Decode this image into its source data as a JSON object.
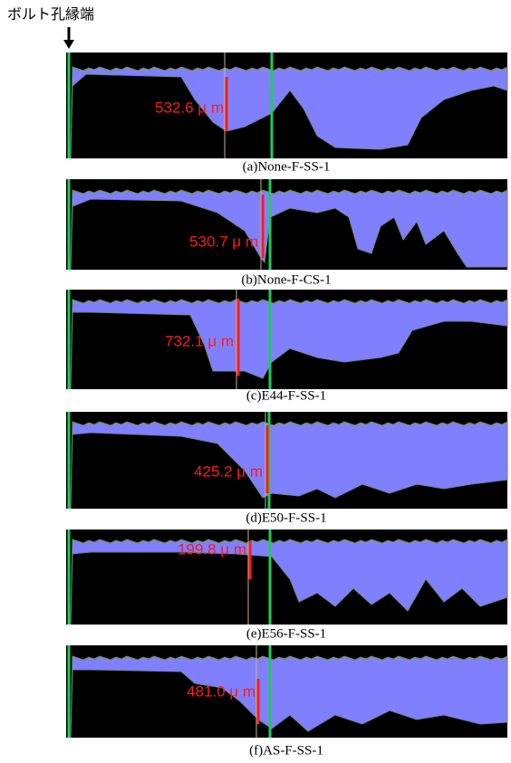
{
  "header": {
    "label": "ボルト孔縁端"
  },
  "panels": [
    {
      "measurement": "532.6 μ m",
      "caption": "(a)None-F-SS-1"
    },
    {
      "measurement": "530.7 μ m",
      "caption": "(b)None-F-CS-1"
    },
    {
      "measurement": "732.1 μ m",
      "caption": "(c)E44-F-SS-1"
    },
    {
      "measurement": "425.2 μ m",
      "caption": "(d)E50-F-SS-1"
    },
    {
      "measurement": "199.8 μ m",
      "caption": "(e)E56-F-SS-1"
    },
    {
      "measurement": "481.0 μ m",
      "caption": "(f)AS-F-SS-1"
    }
  ]
}
